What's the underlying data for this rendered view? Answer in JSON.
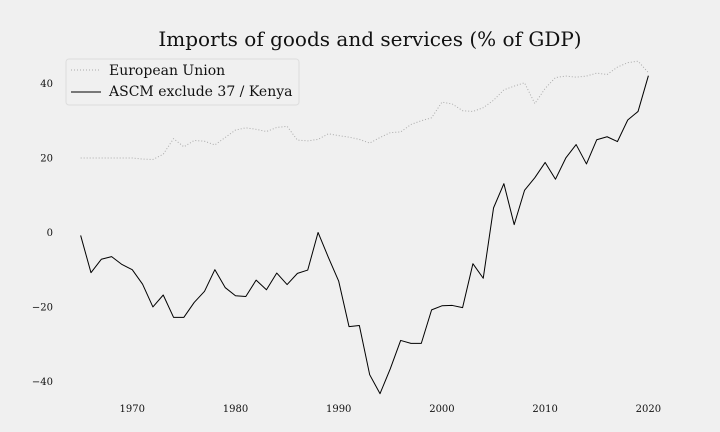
{
  "chart_data": {
    "type": "line",
    "title": "Imports of goods and services (% of GDP)",
    "xlabel": "",
    "ylabel": "",
    "xlim": [
      1963,
      2025
    ],
    "ylim": [
      -45,
      49
    ],
    "x_ticks": [
      1970,
      1980,
      1990,
      2000,
      2010,
      2020
    ],
    "y_ticks": [
      -40,
      -20,
      0,
      20,
      40
    ],
    "grid": false,
    "legend_position": "top-left",
    "series": [
      {
        "name": "European Union",
        "color": "#aaaaaa",
        "style": "dotted",
        "x": [
          1965,
          1966,
          1967,
          1968,
          1969,
          1970,
          1971,
          1972,
          1973,
          1974,
          1975,
          1976,
          1977,
          1978,
          1979,
          1980,
          1981,
          1982,
          1983,
          1984,
          1985,
          1986,
          1987,
          1988,
          1989,
          1990,
          1991,
          1992,
          1993,
          1994,
          1995,
          1996,
          1997,
          1998,
          1999,
          2000,
          2001,
          2002,
          2003,
          2004,
          2005,
          2006,
          2007,
          2008,
          2009,
          2010,
          2011,
          2012,
          2013,
          2014,
          2015,
          2016,
          2017,
          2018,
          2019,
          2020
        ],
        "values": [
          20,
          20,
          20,
          20,
          20,
          20,
          19.7,
          19.6,
          21,
          25.2,
          23,
          24.7,
          24.5,
          23.5,
          25.5,
          27.5,
          28.1,
          27.7,
          27.1,
          28.2,
          28.5,
          24.8,
          24.6,
          25,
          26.5,
          26,
          25.6,
          25,
          24,
          25.5,
          26.8,
          27,
          29,
          30,
          30.8,
          35,
          34.5,
          32.7,
          32.5,
          33.5,
          35.5,
          38.3,
          39.3,
          40.2,
          34.6,
          38.7,
          41.6,
          42,
          41.7,
          42,
          42.8,
          42.4,
          44.4,
          45.6,
          46,
          42.9
        ]
      },
      {
        "name": "ASCM exclude 37 / Kenya",
        "color": "#000000",
        "style": "solid",
        "x": [
          1965,
          1966,
          1967,
          1968,
          1969,
          1970,
          1971,
          1972,
          1973,
          1974,
          1975,
          1976,
          1977,
          1978,
          1979,
          1980,
          1981,
          1982,
          1983,
          1984,
          1985,
          1986,
          1987,
          1988,
          1989,
          1990,
          1991,
          1992,
          1993,
          1994,
          1995,
          1996,
          1997,
          1998,
          1999,
          2000,
          2001,
          2002,
          2003,
          2004,
          2005,
          2006,
          2007,
          2008,
          2009,
          2010,
          2011,
          2012,
          2013,
          2014,
          2015,
          2016,
          2017,
          2018,
          2019,
          2020
        ],
        "values": [
          -0.8,
          -10.8,
          -7.2,
          -6.5,
          -8.6,
          -10,
          -13.9,
          -20,
          -16.8,
          -22.8,
          -22.8,
          -18.8,
          -15.8,
          -10,
          -14.8,
          -17,
          -17.2,
          -12.8,
          -15.4,
          -10.9,
          -14,
          -11,
          -10.1,
          0,
          -6.7,
          -13.1,
          -25.3,
          -25,
          -38.2,
          -43.3,
          -36.6,
          -29,
          -29.8,
          -29.8,
          -20.8,
          -19.7,
          -19.6,
          -20.2,
          -8.4,
          -12.3,
          6.6,
          13.1,
          2.1,
          11.3,
          14.7,
          18.8,
          14.3,
          20,
          23.6,
          18.4,
          24.9,
          25.7,
          24.4,
          30.2,
          32.5,
          42.1
        ]
      }
    ]
  }
}
